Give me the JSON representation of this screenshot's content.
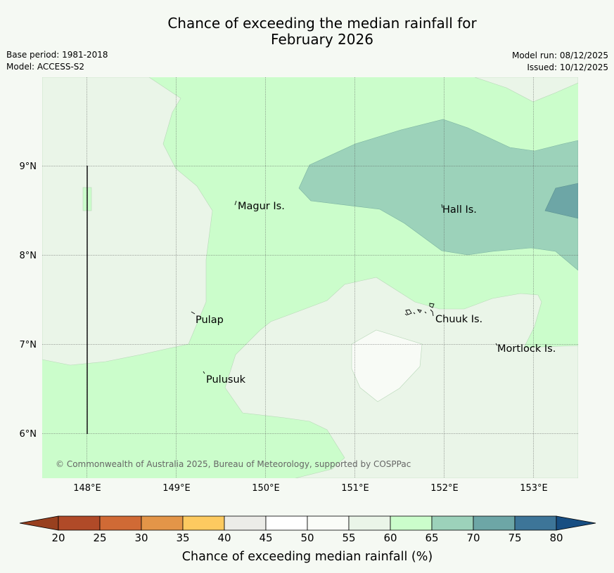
{
  "header": {
    "title_line1": "Chance of exceeding the median rainfall for",
    "title_line2": "February 2026",
    "base_period": "Base period: 1981-2018",
    "model": "Model: ACCESS-S2",
    "model_run": "Model run: 08/12/2025",
    "issued": "Issued: 10/12/2025"
  },
  "map": {
    "lon_labels": [
      "148°E",
      "149°E",
      "150°E",
      "151°E",
      "152°E",
      "153°E"
    ],
    "lat_labels": [
      "9°N",
      "8°N",
      "7°N",
      "6°N"
    ],
    "places": [
      "Magur Is.",
      "Hall Is.",
      "Pulap",
      "Chuuk Is.",
      "Mortlock Is.",
      "Pulusuk"
    ],
    "copyright": "© Commonwealth of Australia 2025, Bureau of Meteorology, supported by COSPPac"
  },
  "legend": {
    "title": "Chance of exceeding median rainfall (%)",
    "ticks": [
      "20",
      "25",
      "30",
      "35",
      "40",
      "45",
      "50",
      "55",
      "60",
      "65",
      "70",
      "75",
      "80"
    ],
    "colors": [
      "#b04a28",
      "#d06a35",
      "#e39548",
      "#fdca60",
      "#ecece8",
      "#ffffff",
      "#fafcf8",
      "#eaf5e8",
      "#cbfdcb",
      "#9cd2ba",
      "#6da6a6",
      "#3d7598"
    ],
    "under_color": "#98401f",
    "over_color": "#174e82"
  }
}
